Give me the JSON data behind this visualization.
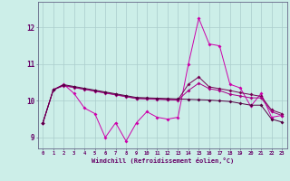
{
  "xlabel": "Windchill (Refroidissement éolien,°C)",
  "x": [
    0,
    1,
    2,
    3,
    4,
    5,
    6,
    7,
    8,
    9,
    10,
    11,
    12,
    13,
    14,
    15,
    16,
    17,
    18,
    19,
    20,
    21,
    22,
    23
  ],
  "line1": [
    9.4,
    10.3,
    10.45,
    10.2,
    9.8,
    9.65,
    9.0,
    9.4,
    8.9,
    9.4,
    9.7,
    9.55,
    9.5,
    9.55,
    11.0,
    12.25,
    11.55,
    11.5,
    10.45,
    10.35,
    9.85,
    10.2,
    9.55,
    9.6
  ],
  "line2": [
    9.4,
    10.3,
    10.42,
    10.37,
    10.32,
    10.27,
    10.22,
    10.17,
    10.12,
    10.07,
    10.06,
    10.05,
    10.04,
    10.03,
    10.45,
    10.65,
    10.38,
    10.33,
    10.28,
    10.22,
    10.17,
    10.12,
    9.75,
    9.65
  ],
  "line3": [
    9.4,
    10.3,
    10.41,
    10.36,
    10.31,
    10.26,
    10.21,
    10.16,
    10.11,
    10.06,
    10.05,
    10.04,
    10.03,
    10.02,
    10.28,
    10.48,
    10.33,
    10.28,
    10.18,
    10.13,
    10.08,
    10.08,
    9.7,
    9.6
  ],
  "line4": [
    9.4,
    10.3,
    10.44,
    10.39,
    10.34,
    10.29,
    10.24,
    10.19,
    10.14,
    10.09,
    10.08,
    10.07,
    10.06,
    10.05,
    10.04,
    10.03,
    10.02,
    10.0,
    9.98,
    9.93,
    9.88,
    9.88,
    9.5,
    9.42
  ],
  "color1": "#cc00aa",
  "color2": "#770055",
  "color3": "#aa0088",
  "color4": "#550044",
  "bg_color": "#cceee8",
  "grid_color": "#aacccc",
  "spine_color": "#666688",
  "tick_color": "#660066",
  "ylim": [
    8.7,
    12.7
  ],
  "yticks": [
    9,
    10,
    11,
    12
  ],
  "xlim": [
    -0.5,
    23.5
  ]
}
